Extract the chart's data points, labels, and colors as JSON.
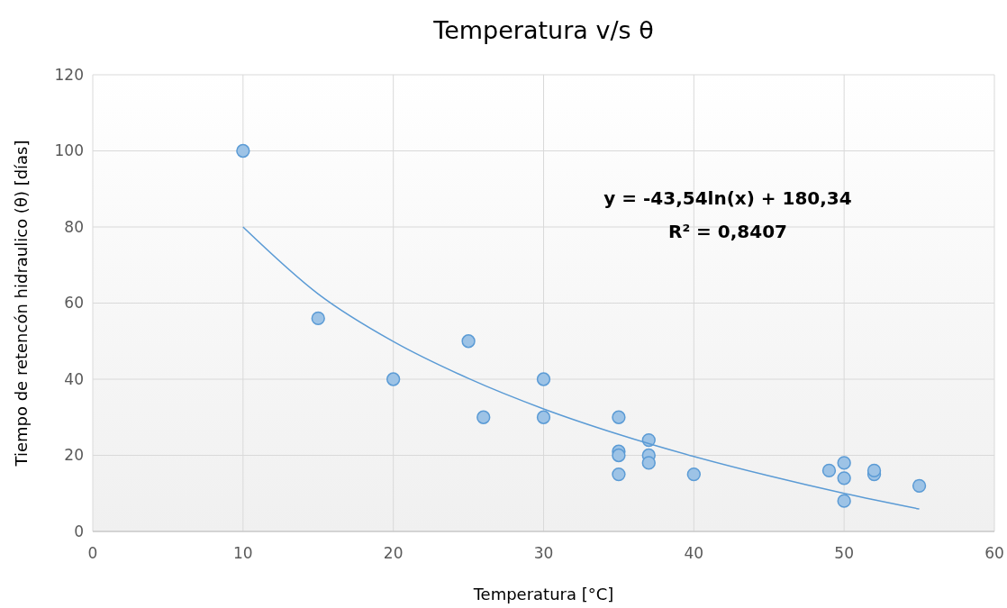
{
  "chart_data": {
    "type": "scatter",
    "title": "Temperatura v/s θ",
    "xlabel": "Temperatura [°C]",
    "ylabel": "Tiempo de retencón hidraulico (θ) [días]",
    "annotations": [
      "y = -43,54ln(x) + 180,34",
      "R² = 0,8407"
    ],
    "xlim": [
      0,
      60
    ],
    "xticks": [
      0,
      10,
      20,
      30,
      40,
      50,
      60
    ],
    "ylim": [
      0,
      120
    ],
    "yticks": [
      0,
      20,
      40,
      60,
      80,
      100,
      120
    ],
    "grid": true,
    "series": [
      {
        "color": "#9dc3e6",
        "marker": "circle",
        "x": [
          10,
          15,
          20,
          25,
          26,
          30,
          30,
          35,
          35,
          35,
          35,
          37,
          37,
          37,
          40,
          49,
          50,
          50,
          50,
          52,
          52,
          55
        ],
        "values": [
          100,
          56,
          40,
          50,
          30,
          40,
          30,
          30,
          21,
          20,
          15,
          24,
          20,
          18,
          15,
          16,
          18,
          14,
          8,
          15,
          16,
          12
        ]
      },
      {
        "type": "line",
        "color": "#5b9bd5",
        "x": [
          10,
          15,
          20,
          25,
          30,
          35,
          40,
          45,
          50,
          55
        ],
        "values": [
          80,
          62.4,
          49.9,
          40.2,
          32.2,
          25.5,
          19.7,
          14.6,
          10,
          5.9
        ]
      }
    ]
  }
}
